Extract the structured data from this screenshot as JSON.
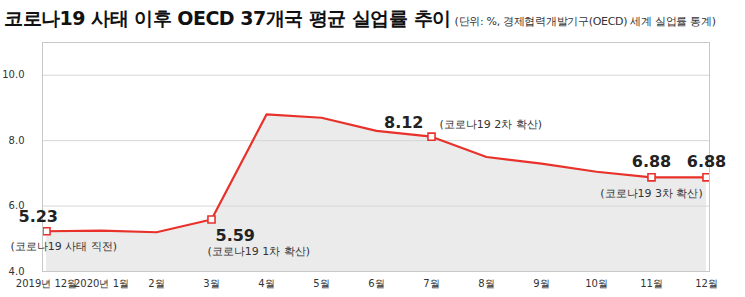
{
  "chart_data": {
    "type": "line",
    "title": "코로나19 사태 이후 OECD 37개국 평균 실업률 추이",
    "subtitle": "(단위: %, 경제협력개발기구(OECD) 세계 실업률 통계)",
    "categories": [
      "2019년 12월",
      "2020년 1월",
      "2월",
      "3월",
      "4월",
      "5월",
      "6월",
      "7월",
      "8월",
      "9월",
      "10월",
      "11월",
      "12월"
    ],
    "values": [
      5.23,
      5.25,
      5.2,
      5.59,
      8.8,
      8.7,
      8.3,
      8.12,
      7.5,
      7.3,
      7.05,
      6.88,
      6.88
    ],
    "color": "#e8312a",
    "marker": "square",
    "ylim": [
      4,
      11
    ],
    "yticks": [
      4,
      6,
      8,
      10
    ],
    "grid": true,
    "annotations": [
      {
        "x": "2019년 12월",
        "value": 5.23,
        "value_label": "5.23",
        "note": "(코로나19 사태 직전)"
      },
      {
        "x": "3월",
        "value": 5.59,
        "value_label": "5.59",
        "note": "(코로나19 1차 확산)"
      },
      {
        "x": "7월",
        "value": 8.12,
        "value_label": "8.12",
        "note": "(코로나19 2차 확산)"
      },
      {
        "x": "11월",
        "value": 6.88,
        "value_label": "6.88",
        "note": "(코로나19 3차 확산)"
      },
      {
        "x": "12월",
        "value": 6.88,
        "value_label": "6.88"
      }
    ]
  }
}
